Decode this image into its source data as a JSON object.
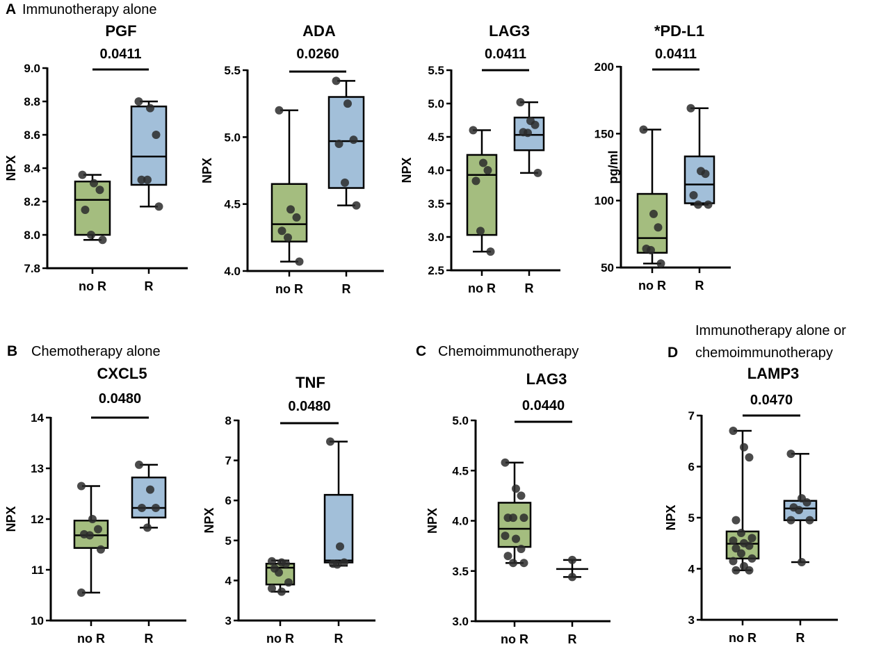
{
  "sections": [
    {
      "letter": "A",
      "label": [
        "Immunotherapy alone"
      ]
    },
    {
      "letter": "B",
      "label": [
        "Chemotherapy alone"
      ]
    },
    {
      "letter": "C",
      "label": [
        "Chemoimmunotherapy"
      ]
    },
    {
      "letter": "D",
      "label": [
        "Immunotherapy alone or",
        "chemoimmunotherapy"
      ]
    }
  ],
  "colors": {
    "noR_box": "#a4bd7f",
    "R_box": "#a2bfd9",
    "points": "#2b2b2b",
    "lines": "#000000"
  },
  "chart_data": [
    {
      "type": "box",
      "section": "A",
      "title": "PGF",
      "pvalue": "0.0411",
      "ylabel": "NPX",
      "ylim": [
        7.8,
        9.0
      ],
      "yticks": [
        "7.8",
        "8.0",
        "8.2",
        "8.4",
        "8.6",
        "8.8",
        "9.0"
      ],
      "categories": [
        "no R",
        "R"
      ],
      "groups": [
        {
          "box": true,
          "min": 7.97,
          "q1": 8.0,
          "median": 8.21,
          "q3": 8.32,
          "max": 8.36,
          "points": [
            8.36,
            8.31,
            8.27,
            8.15,
            8.0,
            7.97
          ]
        },
        {
          "box": true,
          "min": 8.17,
          "q1": 8.3,
          "median": 8.47,
          "q3": 8.77,
          "max": 8.8,
          "points": [
            8.8,
            8.76,
            8.6,
            8.33,
            8.33,
            8.17
          ]
        }
      ]
    },
    {
      "type": "box",
      "section": "A",
      "title": "ADA",
      "pvalue": "0.0260",
      "ylabel": "NPX",
      "ylim": [
        4.0,
        5.5
      ],
      "yticks": [
        "4.0",
        "4.5",
        "5.0",
        "5.5"
      ],
      "categories": [
        "no R",
        "R"
      ],
      "groups": [
        {
          "box": true,
          "min": 4.07,
          "q1": 4.22,
          "median": 4.35,
          "q3": 4.65,
          "max": 5.2,
          "points": [
            5.2,
            4.46,
            4.4,
            4.3,
            4.25,
            4.07
          ]
        },
        {
          "box": true,
          "min": 4.49,
          "q1": 4.62,
          "median": 4.97,
          "q3": 5.3,
          "max": 5.42,
          "points": [
            5.42,
            5.25,
            4.98,
            4.95,
            4.66,
            4.49
          ]
        }
      ]
    },
    {
      "type": "box",
      "section": "A",
      "title": "LAG3",
      "pvalue": "0.0411",
      "ylabel": "NPX",
      "ylim": [
        2.5,
        5.5
      ],
      "yticks": [
        "2.5",
        "3.0",
        "3.5",
        "4.0",
        "4.5",
        "5.0",
        "5.5"
      ],
      "categories": [
        "no R",
        "R"
      ],
      "groups": [
        {
          "box": true,
          "min": 2.78,
          "q1": 3.03,
          "median": 3.93,
          "q3": 4.23,
          "max": 4.6,
          "points": [
            4.6,
            4.11,
            4.0,
            3.84,
            3.09,
            2.78
          ]
        },
        {
          "box": true,
          "min": 3.96,
          "q1": 4.3,
          "median": 4.53,
          "q3": 4.79,
          "max": 5.02,
          "points": [
            5.02,
            4.74,
            4.68,
            4.57,
            4.56,
            3.96
          ]
        }
      ]
    },
    {
      "type": "box",
      "section": "A",
      "title": "*PD-L1",
      "pvalue": "0.0411",
      "ylabel": "pg/ml",
      "ylim": [
        50,
        200
      ],
      "yticks": [
        "50",
        "100",
        "150",
        "200"
      ],
      "categories": [
        "no R",
        "R"
      ],
      "groups": [
        {
          "box": true,
          "min": 53,
          "q1": 61,
          "median": 72,
          "q3": 105,
          "max": 153,
          "points": [
            153,
            90,
            80,
            64,
            63,
            53
          ]
        },
        {
          "box": true,
          "min": 97,
          "q1": 98,
          "median": 112,
          "q3": 133,
          "max": 169,
          "points": [
            169,
            122,
            120,
            104,
            97,
            97
          ]
        }
      ]
    },
    {
      "type": "box",
      "section": "B",
      "title": "CXCL5",
      "pvalue": "0.0480",
      "ylabel": "NPX",
      "ylim": [
        10,
        14
      ],
      "yticks": [
        "10",
        "11",
        "12",
        "13",
        "14"
      ],
      "categories": [
        "no R",
        "R"
      ],
      "groups": [
        {
          "box": true,
          "min": 10.55,
          "q1": 11.43,
          "median": 11.68,
          "q3": 11.97,
          "max": 12.65,
          "points": [
            12.65,
            12.0,
            11.8,
            11.7,
            11.68,
            11.4,
            10.55
          ]
        },
        {
          "box": true,
          "min": 11.83,
          "q1": 12.03,
          "median": 12.22,
          "q3": 12.82,
          "max": 13.07,
          "points": [
            13.07,
            12.58,
            12.22,
            12.22,
            11.83
          ]
        }
      ]
    },
    {
      "type": "box",
      "section": "B",
      "title": "TNF",
      "pvalue": "0.0480",
      "ylabel": "NPX",
      "ylim": [
        3,
        8
      ],
      "yticks": [
        "3",
        "4",
        "5",
        "6",
        "7",
        "8"
      ],
      "categories": [
        "no R",
        "R"
      ],
      "groups": [
        {
          "box": true,
          "min": 3.72,
          "q1": 3.9,
          "median": 4.32,
          "q3": 4.42,
          "max": 4.5,
          "points": [
            4.48,
            4.45,
            4.42,
            4.3,
            4.2,
            3.95,
            3.8,
            3.72
          ]
        },
        {
          "box": true,
          "min": 4.37,
          "q1": 4.45,
          "median": 4.5,
          "q3": 6.14,
          "max": 7.47,
          "points": [
            7.47,
            4.85,
            4.45,
            4.42,
            4.4
          ]
        }
      ]
    },
    {
      "type": "box",
      "section": "C",
      "title": "LAG3",
      "pvalue": "0.0440",
      "ylabel": "NPX",
      "ylim": [
        3.0,
        5.0
      ],
      "yticks": [
        "3.0",
        "3.5",
        "4.0",
        "4.5",
        "5.0"
      ],
      "categories": [
        "no R",
        "R"
      ],
      "groups": [
        {
          "box": true,
          "min": 3.58,
          "q1": 3.74,
          "median": 3.92,
          "q3": 4.18,
          "max": 4.58,
          "points": [
            4.58,
            4.32,
            4.25,
            4.03,
            4.03,
            4.03,
            3.85,
            3.82,
            3.72,
            3.65,
            3.58,
            3.58
          ]
        },
        {
          "box": false,
          "min": 3.44,
          "median": 3.52,
          "max": 3.61,
          "points": [
            3.61,
            3.44
          ]
        }
      ]
    },
    {
      "type": "box",
      "section": "D",
      "title": "LAMP3",
      "pvalue": "0.0470",
      "ylabel": "NPX",
      "ylim": [
        3,
        7
      ],
      "yticks": [
        "3",
        "4",
        "5",
        "6",
        "7"
      ],
      "categories": [
        "no R",
        "R"
      ],
      "groups": [
        {
          "box": true,
          "min": 3.97,
          "q1": 4.2,
          "median": 4.49,
          "q3": 4.73,
          "max": 6.7,
          "points": [
            6.7,
            6.38,
            6.18,
            4.95,
            4.7,
            4.6,
            4.55,
            4.5,
            4.45,
            4.4,
            4.3,
            4.2,
            4.15,
            4.05,
            3.97,
            3.97
          ]
        },
        {
          "box": true,
          "min": 4.13,
          "q1": 4.95,
          "median": 5.18,
          "q3": 5.33,
          "max": 6.25,
          "points": [
            6.25,
            5.38,
            5.3,
            5.2,
            5.15,
            4.95,
            4.95,
            4.13
          ]
        }
      ]
    }
  ]
}
